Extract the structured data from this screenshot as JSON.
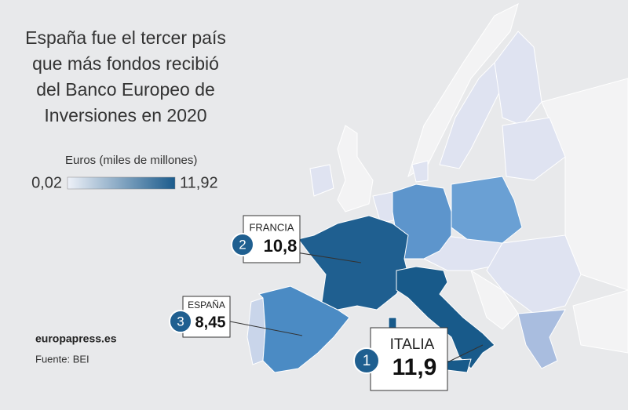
{
  "title": [
    "España fue el tercer país",
    "que más fondos recibió",
    "del Banco Europeo de",
    "Inversiones en 2020"
  ],
  "legend": {
    "label": "Euros (miles de millones)",
    "min": "0,02",
    "max": "11,92",
    "colors": [
      "#eef1f8",
      "#1b5b8c"
    ]
  },
  "callouts": [
    {
      "rank": "2",
      "country": "FRANCIA",
      "value": "10,8"
    },
    {
      "rank": "3",
      "country": "ESPAÑA",
      "value": "8,45"
    },
    {
      "rank": "1",
      "country": "ITALIA",
      "value": "11,9"
    }
  ],
  "footer": {
    "brand": "europapress.es",
    "source": "Fuente: BEI"
  }
}
